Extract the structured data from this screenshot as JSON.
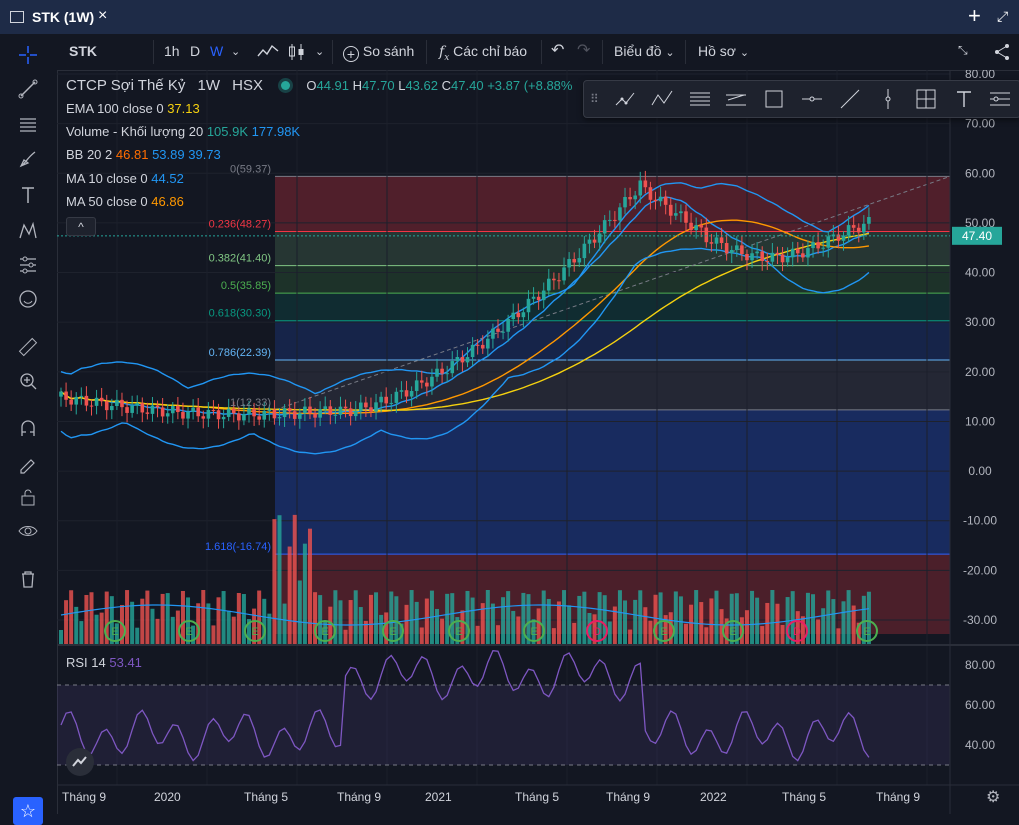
{
  "window": {
    "title": "STK (1W)",
    "close": "×",
    "add": "+",
    "expand": "⤢"
  },
  "toolbar": {
    "symbol": "STK",
    "intervals": [
      "1h",
      "D",
      "W"
    ],
    "compare": "So sánh",
    "indicators": "Các chỉ báo",
    "chart_menu": "Biểu đồ",
    "profile_menu": "Hồ sơ"
  },
  "legend": {
    "name": "CTCP Sợi Thế Kỷ",
    "interval": "1W",
    "exchange": "HSX",
    "ohlc": {
      "o_label": "O",
      "o": "44.91",
      "h_label": "H",
      "h": "47.70",
      "l_label": "L",
      "l": "43.62",
      "c_label": "C",
      "c": "47.40",
      "change": "+3.87 (+8.88%"
    },
    "indicators": [
      {
        "label": "EMA 100 close 0",
        "values": [
          "37.13"
        ],
        "colors": [
          "#f5d10f"
        ]
      },
      {
        "label": "Volume - Khối lượng 20",
        "values": [
          "105.9K",
          "177.98K"
        ],
        "colors": [
          "#26a69a",
          "#2196f3"
        ]
      },
      {
        "label": "BB 20 2",
        "values": [
          "46.81",
          "53.89",
          "39.73"
        ],
        "colors": [
          "#ff6d00",
          "#2196f3",
          "#2196f3"
        ]
      },
      {
        "label": "MA 10 close 0",
        "values": [
          "44.52"
        ],
        "colors": [
          "#2196f3"
        ]
      },
      {
        "label": "MA 50 close 0",
        "values": [
          "46.86"
        ],
        "colors": [
          "#ff9800"
        ]
      }
    ],
    "collapse": "^"
  },
  "fib_levels": [
    {
      "label": "0(59.37)",
      "value": 59.37,
      "color": "#787b86"
    },
    {
      "label": "0.236(48.27)",
      "value": 48.27,
      "color": "#f23645"
    },
    {
      "label": "0.382(41.40)",
      "value": 41.4,
      "color": "#81c784"
    },
    {
      "label": "0.5(35.85)",
      "value": 35.85,
      "color": "#4caf50"
    },
    {
      "label": "0.618(30.30)",
      "value": 30.3,
      "color": "#089981"
    },
    {
      "label": "0.786(22.39)",
      "value": 22.39,
      "color": "#64b5f6"
    },
    {
      "label": "1(12.33)",
      "value": 12.33,
      "color": "#787b86"
    },
    {
      "label": "1.618(-16.74)",
      "value": -16.74,
      "color": "#2962ff"
    }
  ],
  "price_axis": [
    "80.00",
    "70.00",
    "60.00",
    "50.00",
    "40.00",
    "30.00",
    "20.00",
    "10.00",
    "0.00",
    "-10.00",
    "-20.00",
    "-30.00"
  ],
  "last_price": "47.40",
  "rsi": {
    "label": "RSI 14",
    "value": "53.41",
    "axis": [
      "80.00",
      "60.00",
      "40.00"
    ],
    "upper": 70,
    "lower": 30
  },
  "time_axis": [
    "Tháng 9",
    "2020",
    "Tháng 5",
    "Tháng 9",
    "2021",
    "Tháng 5",
    "Tháng 9",
    "2022",
    "Tháng 5",
    "Tháng 9"
  ],
  "event_markers": [
    "E",
    "E",
    "E",
    "E",
    "E",
    "E",
    "E",
    "D",
    "E",
    "E",
    "D",
    "E"
  ],
  "colors": {
    "up": "#26a69a",
    "down": "#ef5350",
    "accent": "#2962ff",
    "bg": "#131722"
  }
}
